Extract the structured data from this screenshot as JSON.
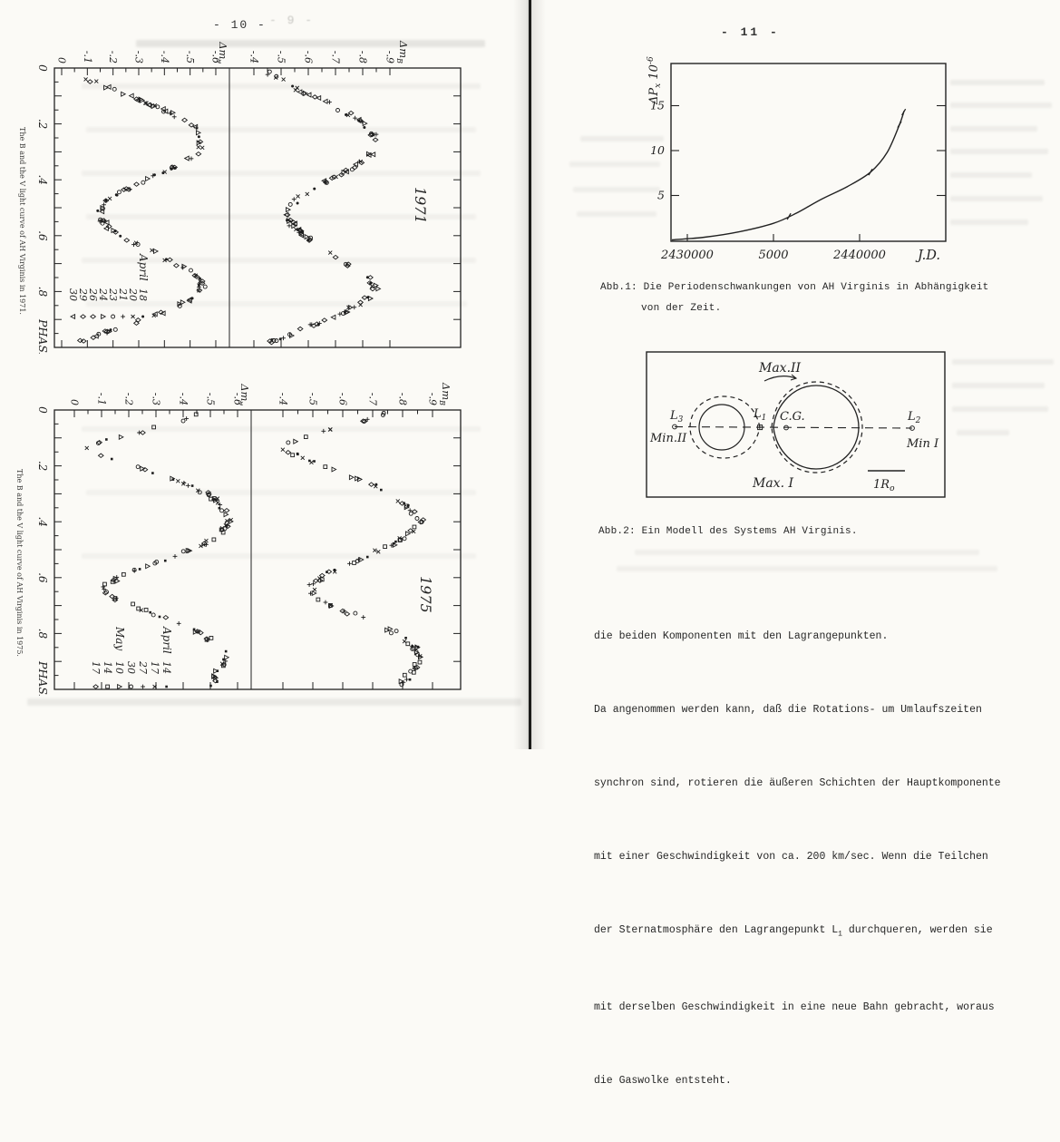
{
  "page_left": {
    "header": "- 10 -",
    "header_bleed": "- 9 -",
    "fig1971": {
      "year": "1971",
      "side_caption": "The B and the V light curve of AH Virginis in 1971.",
      "phase_label": "PHASE",
      "phase_ticks": [
        "0",
        ".2",
        ".4",
        ".6",
        ".8"
      ],
      "v_axis": {
        "label": {
          "base": "Δm",
          "sub": "v"
        },
        "ticks": [
          "0",
          "-.1",
          "-.2",
          "-.3",
          "-.4",
          "-.5",
          "-.6"
        ]
      },
      "b_axis": {
        "label": {
          "base": "Δm",
          "sub": "B"
        },
        "ticks": [
          "-.4",
          "-.5",
          "-.6",
          "-.7",
          "-.8",
          "-.9"
        ]
      },
      "legend": {
        "groups": [
          {
            "title": "April",
            "items": [
              [
                "18",
                "dot"
              ],
              [
                "20",
                "x"
              ],
              [
                "21",
                "plus"
              ],
              [
                "23",
                "circle"
              ],
              [
                "24",
                "tri-up"
              ],
              [
                "26",
                "diamond"
              ],
              [
                "29",
                "diamond"
              ],
              [
                "30",
                "tri-down"
              ]
            ]
          }
        ]
      },
      "chart_data": {
        "type": "scatter",
        "xlabel": "PHASE",
        "xlim": [
          0,
          1
        ],
        "bands": [
          {
            "name": "delta_m_V",
            "ylim": [
              0,
              -0.65
            ],
            "anchors": [
              [
                0,
                -0.03
              ],
              [
                0.04,
                -0.1
              ],
              [
                0.08,
                -0.21
              ],
              [
                0.12,
                -0.32
              ],
              [
                0.16,
                -0.42
              ],
              [
                0.2,
                -0.5
              ],
              [
                0.25,
                -0.55
              ],
              [
                0.3,
                -0.53
              ],
              [
                0.34,
                -0.47
              ],
              [
                0.38,
                -0.38
              ],
              [
                0.42,
                -0.28
              ],
              [
                0.46,
                -0.2
              ],
              [
                0.5,
                -0.15
              ],
              [
                0.53,
                -0.14
              ],
              [
                0.57,
                -0.18
              ],
              [
                0.62,
                -0.27
              ],
              [
                0.67,
                -0.38
              ],
              [
                0.72,
                -0.48
              ],
              [
                0.76,
                -0.54
              ],
              [
                0.79,
                -0.55
              ],
              [
                0.83,
                -0.5
              ],
              [
                0.87,
                -0.41
              ],
              [
                0.91,
                -0.29
              ],
              [
                0.95,
                -0.16
              ],
              [
                0.98,
                -0.07
              ],
              [
                1,
                -0.03
              ]
            ]
          },
          {
            "name": "delta_m_B",
            "ylim": [
              -0.4,
              -0.95
            ],
            "anchors": [
              [
                0,
                -0.42
              ],
              [
                0.04,
                -0.49
              ],
              [
                0.08,
                -0.57
              ],
              [
                0.12,
                -0.66
              ],
              [
                0.16,
                -0.74
              ],
              [
                0.2,
                -0.8
              ],
              [
                0.25,
                -0.85
              ],
              [
                0.3,
                -0.84
              ],
              [
                0.34,
                -0.79
              ],
              [
                0.38,
                -0.72
              ],
              [
                0.42,
                -0.64
              ],
              [
                0.46,
                -0.57
              ],
              [
                0.5,
                -0.53
              ],
              [
                0.53,
                -0.52
              ],
              [
                0.57,
                -0.55
              ],
              [
                0.62,
                -0.61
              ],
              [
                0.67,
                -0.69
              ],
              [
                0.72,
                -0.77
              ],
              [
                0.76,
                -0.83
              ],
              [
                0.79,
                -0.85
              ],
              [
                0.83,
                -0.81
              ],
              [
                0.87,
                -0.74
              ],
              [
                0.91,
                -0.64
              ],
              [
                0.95,
                -0.54
              ],
              [
                0.98,
                -0.46
              ],
              [
                1,
                -0.42
              ]
            ]
          }
        ]
      }
    },
    "fig1975": {
      "year": "1975",
      "side_caption": "The B and the V light curve of AH Virginis in 1975.",
      "phase_label": "PHASE",
      "phase_ticks": [
        "0",
        ".2",
        ".4",
        ".6",
        ".8"
      ],
      "v_axis": {
        "label": {
          "base": "Δm",
          "sub": "v"
        },
        "ticks": [
          "0",
          "-.1",
          "-.2",
          "-.3",
          "-.4",
          "-.5",
          "-.6"
        ]
      },
      "b_axis": {
        "label": {
          "base": "Δm",
          "sub": "B"
        },
        "ticks": [
          "-.4",
          "-.5",
          "-.6",
          "-.7",
          "-.8",
          "-.9"
        ]
      },
      "legend": {
        "groups": [
          {
            "title": "April",
            "items": [
              [
                "14",
                "square-small"
              ],
              [
                "17",
                "x"
              ],
              [
                "27",
                "plus"
              ],
              [
                "30",
                "circle"
              ]
            ]
          },
          {
            "title": "May",
            "items": [
              [
                "10",
                "tri-up"
              ],
              [
                "14",
                "square"
              ],
              [
                "17",
                "diamond"
              ]
            ]
          }
        ]
      },
      "chart_data": {
        "type": "scatter",
        "xlabel": "PHASE",
        "xlim": [
          0,
          1
        ],
        "bands": [
          {
            "name": "delta_m_V",
            "ylim": [
              0,
              -0.65
            ],
            "anchors": [
              [
                0,
                -0.5
              ],
              [
                0.04,
                -0.38
              ],
              [
                0.08,
                -0.24
              ],
              [
                0.11,
                -0.12
              ],
              [
                0.14,
                -0.05
              ],
              [
                0.18,
                -0.14
              ],
              [
                0.22,
                -0.28
              ],
              [
                0.26,
                -0.4
              ],
              [
                0.3,
                -0.49
              ],
              [
                0.34,
                -0.54
              ],
              [
                0.39,
                -0.57
              ],
              [
                0.44,
                -0.54
              ],
              [
                0.48,
                -0.47
              ],
              [
                0.52,
                -0.37
              ],
              [
                0.56,
                -0.26
              ],
              [
                0.6,
                -0.16
              ],
              [
                0.64,
                -0.1
              ],
              [
                0.68,
                -0.16
              ],
              [
                0.72,
                -0.27
              ],
              [
                0.76,
                -0.38
              ],
              [
                0.8,
                -0.47
              ],
              [
                0.85,
                -0.54
              ],
              [
                0.89,
                -0.56
              ],
              [
                0.93,
                -0.53
              ],
              [
                1,
                -0.5
              ]
            ]
          },
          {
            "name": "delta_m_B",
            "ylim": [
              -0.4,
              -0.95
            ],
            "anchors": [
              [
                0,
                -0.79
              ],
              [
                0.04,
                -0.67
              ],
              [
                0.08,
                -0.53
              ],
              [
                0.11,
                -0.44
              ],
              [
                0.14,
                -0.4
              ],
              [
                0.18,
                -0.48
              ],
              [
                0.22,
                -0.59
              ],
              [
                0.26,
                -0.69
              ],
              [
                0.3,
                -0.77
              ],
              [
                0.34,
                -0.82
              ],
              [
                0.39,
                -0.86
              ],
              [
                0.44,
                -0.83
              ],
              [
                0.48,
                -0.77
              ],
              [
                0.52,
                -0.68
              ],
              [
                0.56,
                -0.6
              ],
              [
                0.6,
                -0.53
              ],
              [
                0.64,
                -0.49
              ],
              [
                0.68,
                -0.53
              ],
              [
                0.72,
                -0.61
              ],
              [
                0.76,
                -0.7
              ],
              [
                0.8,
                -0.78
              ],
              [
                0.85,
                -0.84
              ],
              [
                0.89,
                -0.86
              ],
              [
                0.93,
                -0.83
              ],
              [
                1,
                -0.79
              ]
            ]
          }
        ]
      }
    }
  },
  "page_right": {
    "header": "- 11 -",
    "abb1": {
      "caption_line1": "Abb.1: Die Periodenschwankungen von AH Virginis in Abhängigkeit",
      "caption_line2": "von der Zeit.",
      "ylabel": {
        "base": "ΔP",
        "sub": "x",
        "rest": " 10",
        "exp": "-6"
      },
      "xlabel": "J.D.",
      "yticks": [
        "5",
        "10",
        "15"
      ],
      "xticks": [
        "2430000",
        "5000",
        "2440000"
      ],
      "chart_data": {
        "type": "line",
        "xlabel": "J.D.",
        "ylabel": "Delta P x 10^-6",
        "xlim": [
          2429000,
          2445000
        ],
        "ylim": [
          0,
          16
        ],
        "points": [
          [
            2429100,
            0.05
          ],
          [
            2431000,
            0.35
          ],
          [
            2433000,
            0.95
          ],
          [
            2435000,
            1.9
          ],
          [
            2436300,
            3.0
          ],
          [
            2437800,
            4.6
          ],
          [
            2439300,
            6.0
          ],
          [
            2440630,
            7.6
          ],
          [
            2441600,
            9.8
          ],
          [
            2442315,
            12.9
          ],
          [
            2442580,
            14.4
          ]
        ],
        "marker_jds": [
          2435900,
          2440630,
          2442315,
          2442560
        ]
      }
    },
    "abb2": {
      "caption": "Abb.2: Ein Modell des Systems AH Virginis.",
      "labels": {
        "max2": "Max.II",
        "max1": "Max. I",
        "min2": "Min.II",
        "min1": "Min I",
        "cg": "C.G.",
        "l3": [
          "L",
          "3"
        ],
        "l1": [
          "L",
          "1"
        ],
        "l2": [
          "L",
          "2"
        ],
        "scale": [
          "1R",
          "o"
        ]
      }
    },
    "paragraph": {
      "l1": "die beiden Komponenten mit den Lagrangepunkten.",
      "l2": "Da angenommen werden kann, daß die Rotations- um Umlaufszeiten",
      "l3": "synchron sind, rotieren die äußeren Schichten der Hauptkomponente",
      "l4": "mit einer Geschwindigkeit von ca. 200 km/sec. Wenn die Teilchen",
      "l5pre": "der Sternatmosphäre den Lagrangepunkt L",
      "l5sub": "1",
      "l5post": " durchqueren, werden sie",
      "l6": "mit derselben Geschwindigkeit in eine neue Bahn gebracht, woraus",
      "l7": "die Gaswolke entsteht."
    }
  }
}
